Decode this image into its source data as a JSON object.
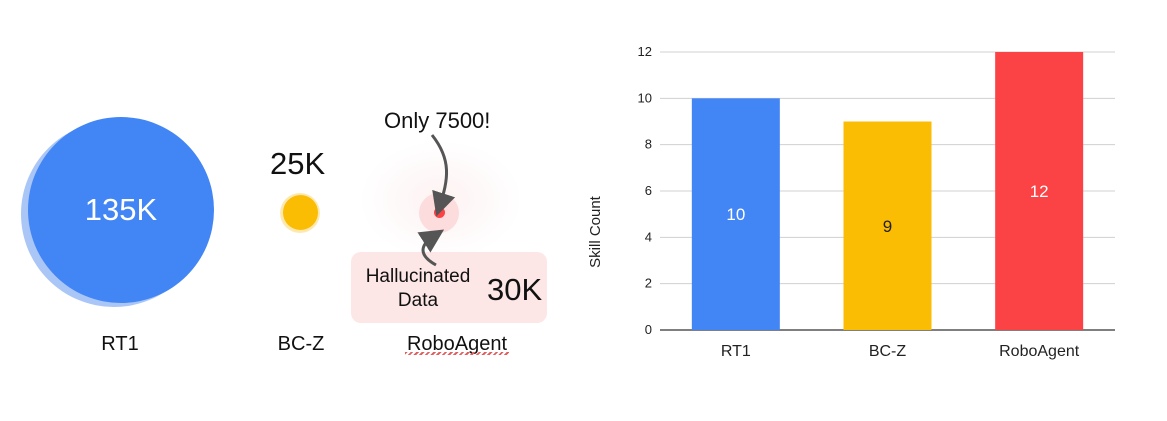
{
  "bubbles": {
    "rt1": {
      "value_label": "135K",
      "name": "RT1"
    },
    "bcz": {
      "value_label": "25K",
      "name": "BC-Z"
    },
    "roboagent": {
      "value_label": "Only 7500!",
      "name": "RoboAgent",
      "hallucinated_label": "Hallucinated\nData",
      "hallucinated_value": "30K"
    }
  },
  "colors": {
    "blue": "#4285f4",
    "yellow": "#fbbc04",
    "red": "#fb4245",
    "pink_bg": "#fde6e6"
  },
  "chart_data": {
    "type": "bar",
    "categories": [
      "RT1",
      "BC-Z",
      "RoboAgent"
    ],
    "values": [
      10,
      9,
      12
    ],
    "data_labels": [
      "10",
      "9",
      "12"
    ],
    "title": "",
    "xlabel": "",
    "ylabel": "Skill Count",
    "ylim": [
      0,
      12
    ],
    "yticks": [
      0,
      2,
      4,
      6,
      8,
      10,
      12
    ],
    "bar_colors": [
      "#4285f4",
      "#fbbc04",
      "#fb4245"
    ],
    "label_colors": [
      "#ffffff",
      "#222222",
      "#ffffff"
    ],
    "grid": true,
    "legend": false
  }
}
